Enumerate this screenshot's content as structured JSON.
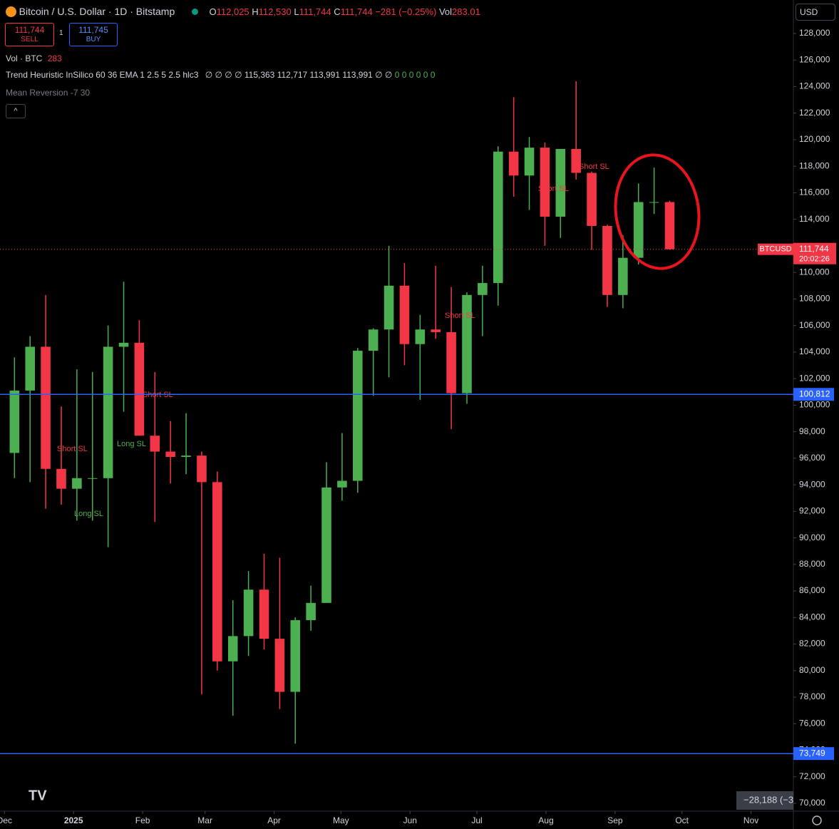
{
  "header": {
    "symbol": "Bitcoin / U.S. Dollar · 1D · Bitstamp",
    "ohlc_labels": [
      "O",
      "H",
      "L",
      "C"
    ],
    "ohlc_values": [
      "112,025",
      "112,530",
      "111,744",
      "111,744"
    ],
    "change": "−281 (−0.25%)",
    "vol_label": "Vol",
    "vol_value": "283.01",
    "sell_price": "111,744",
    "sell_label": "SELL",
    "spread": "1",
    "buy_price": "111,745",
    "buy_label": "BUY",
    "volume_indicator": "Vol · BTC",
    "volume_indicator_value": "283",
    "trend_indicator": "Trend Heuristic InSilico 60 36 EMA 1 2.5 5 2.5 hlc3",
    "trend_values": "∅ ∅ ∅ ∅ 115,363 112,717 113,991 113,991 ∅ ∅",
    "trend_flags": "0 0 0 0 0 0",
    "mean_reversion": "Mean Reversion -7 30",
    "currency": "USD"
  },
  "chart_data": {
    "type": "candlestick",
    "x": [
      -30,
      -23,
      -16,
      -9,
      -2,
      5,
      12,
      19,
      26,
      33,
      40,
      47,
      54,
      61,
      68,
      75,
      82,
      89,
      96,
      103,
      110,
      117,
      124,
      131,
      138,
      145,
      152,
      159,
      166,
      173,
      180,
      187,
      194,
      201,
      208,
      215,
      222,
      229,
      236,
      243,
      250,
      257,
      264
    ],
    "open": [
      96400,
      101100,
      104400,
      95200,
      93700,
      94500,
      94500,
      104400,
      104700,
      97700,
      96500,
      96100,
      96200,
      94200,
      80700,
      82600,
      86100,
      82400,
      78400,
      83800,
      85100,
      93800,
      94300,
      104100,
      105700,
      109000,
      104600,
      105700,
      105500,
      100900,
      108300,
      109200,
      119100,
      117300,
      119400,
      114200,
      119300,
      117500,
      113500,
      108300,
      111100,
      115300,
      115300
    ],
    "high": [
      103600,
      105200,
      108300,
      99900,
      102700,
      102500,
      106000,
      109300,
      106400,
      102500,
      98800,
      99400,
      96500,
      95000,
      85300,
      87500,
      88800,
      88500,
      84000,
      86400,
      95700,
      97900,
      104300,
      105800,
      112000,
      110700,
      106800,
      110500,
      108900,
      108500,
      110500,
      119500,
      123200,
      120200,
      119800,
      119300,
      124400,
      117600,
      113600,
      112800,
      116700,
      117900,
      115400
    ],
    "low": [
      94500,
      94200,
      92200,
      92500,
      91300,
      91300,
      89300,
      99500,
      97700,
      91200,
      94100,
      94800,
      78200,
      80000,
      76600,
      81100,
      81600,
      77100,
      74500,
      83000,
      85100,
      92800,
      93400,
      100700,
      102100,
      103000,
      100400,
      105000,
      98200,
      100100,
      105200,
      107500,
      115700,
      114700,
      112000,
      112600,
      117000,
      111700,
      107400,
      107300,
      110600,
      114400,
      111700
    ],
    "close": [
      101100,
      104400,
      95200,
      93700,
      94500,
      94500,
      104400,
      104700,
      97700,
      96500,
      96100,
      96200,
      94200,
      80700,
      82600,
      86100,
      82400,
      78400,
      83800,
      85100,
      93800,
      94300,
      104100,
      105700,
      109000,
      104600,
      105700,
      105500,
      100900,
      108300,
      109200,
      119100,
      117300,
      119400,
      114200,
      119300,
      117500,
      113500,
      108300,
      111100,
      115300,
      115300,
      111744
    ],
    "up_color": "#4caf50",
    "down_color": "#f23645",
    "xlim": [
      -33,
      323
    ],
    "xticks": [
      {
        "value": -31,
        "label": "Dec"
      },
      {
        "value": 0,
        "label": "2025"
      },
      {
        "value": 31,
        "label": "Feb"
      },
      {
        "value": 59,
        "label": "Mar"
      },
      {
        "value": 90,
        "label": "Apr"
      },
      {
        "value": 120,
        "label": "May"
      },
      {
        "value": 151,
        "label": "Jun"
      },
      {
        "value": 181,
        "label": "Jul"
      },
      {
        "value": 212,
        "label": "Aug"
      },
      {
        "value": 243,
        "label": "Sep"
      },
      {
        "value": 273,
        "label": "Oct"
      },
      {
        "value": 304,
        "label": "Nov"
      }
    ],
    "ylim": [
      70000,
      128000
    ],
    "yticks": [
      {
        "value": 70000,
        "label": "70,000"
      },
      {
        "value": 72000,
        "label": "72,000"
      },
      {
        "value": 74000,
        "label": "74,000"
      },
      {
        "value": 76000,
        "label": "76,000"
      },
      {
        "value": 78000,
        "label": "78,000"
      },
      {
        "value": 80000,
        "label": "80,000"
      },
      {
        "value": 82000,
        "label": "82,000"
      },
      {
        "value": 84000,
        "label": "84,000"
      },
      {
        "value": 86000,
        "label": "86,000"
      },
      {
        "value": 88000,
        "label": "88,000"
      },
      {
        "value": 90000,
        "label": "90,000"
      },
      {
        "value": 92000,
        "label": "92,000"
      },
      {
        "value": 94000,
        "label": "94,000"
      },
      {
        "value": 96000,
        "label": "96,000"
      },
      {
        "value": 98000,
        "label": "98,000"
      },
      {
        "value": 100000,
        "label": "100,000"
      },
      {
        "value": 102000,
        "label": "102,000"
      },
      {
        "value": 104000,
        "label": "104,000"
      },
      {
        "value": 106000,
        "label": "106,000"
      },
      {
        "value": 108000,
        "label": "108,000"
      },
      {
        "value": 110000,
        "label": "110,000"
      },
      {
        "value": 114000,
        "label": "114,000"
      },
      {
        "value": 116000,
        "label": "116,000"
      },
      {
        "value": 118000,
        "label": "118,000"
      },
      {
        "value": 120000,
        "label": "120,000"
      },
      {
        "value": 122000,
        "label": "122,000"
      },
      {
        "value": 124000,
        "label": "124,000"
      },
      {
        "value": 126000,
        "label": "126,000"
      },
      {
        "value": 128000,
        "label": "128,000"
      }
    ],
    "last_price": {
      "value": 111744,
      "label": "111,744",
      "symbol": "BTCUSD",
      "countdown": "20:02:26",
      "color": "#f23645"
    },
    "levels": [
      {
        "value": 100812,
        "label": "100,812",
        "color": "#2962ff"
      },
      {
        "value": 73749,
        "label": "73,749",
        "color": "#2962ff"
      }
    ],
    "annotations": [
      "Short SL",
      "Long SL",
      "Long SL",
      "Short SL",
      "Short SL",
      "Short SL",
      "Short SL"
    ],
    "annotation_colors": [
      "#f23645",
      "#4caf50",
      "#4caf50",
      "#f23645",
      "#f23645",
      "#f23645",
      "#f23645"
    ],
    "measure_label": "−28,188 (−3"
  }
}
